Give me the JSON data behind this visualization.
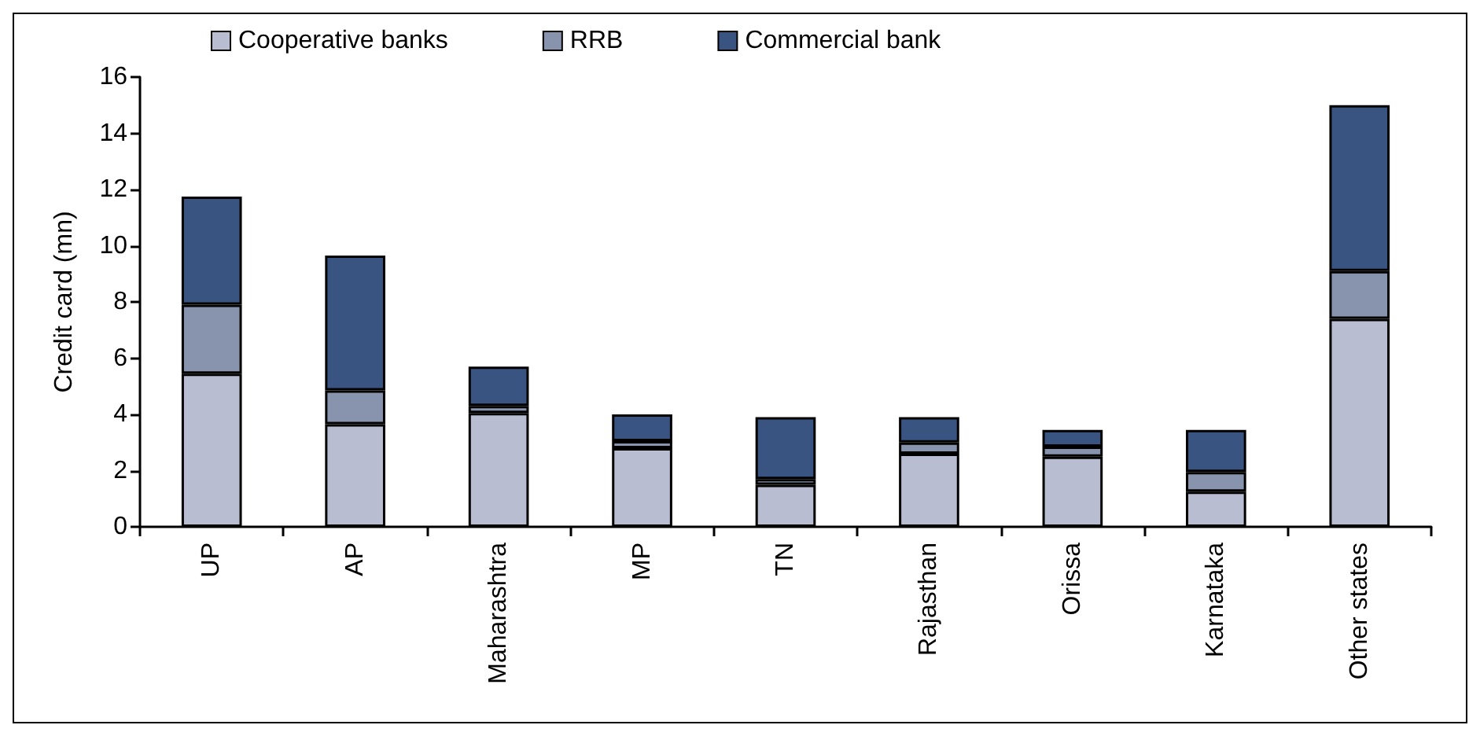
{
  "chart_data": {
    "type": "bar",
    "stacked": true,
    "ylabel": "Credit card (mn)",
    "categories": [
      "UP",
      "AP",
      "Maharashtra",
      "MP",
      "TN",
      "Rajasthan",
      "Orissa",
      "Karnataka",
      "Other states"
    ],
    "series": [
      {
        "name": "Cooperative banks",
        "color": "#b8bdd1",
        "values": [
          5.45,
          3.65,
          4.05,
          2.8,
          1.5,
          2.6,
          2.5,
          1.25,
          7.4
        ]
      },
      {
        "name": "RRB",
        "color": "#8893ae",
        "values": [
          2.45,
          1.2,
          0.25,
          0.25,
          0.2,
          0.4,
          0.35,
          0.7,
          1.7
        ]
      },
      {
        "name": "Commercial bank",
        "color": "#3a5482",
        "values": [
          3.85,
          4.8,
          1.4,
          0.95,
          2.2,
          0.9,
          0.6,
          1.5,
          5.9
        ]
      }
    ],
    "ylim": [
      0,
      16
    ],
    "yticks": [
      0,
      2,
      4,
      6,
      8,
      10,
      12,
      14,
      16
    ],
    "grid": false,
    "legend": "top"
  }
}
